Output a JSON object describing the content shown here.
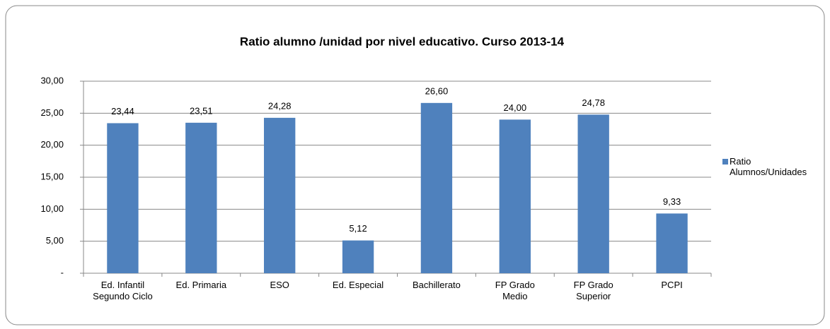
{
  "chart_data": {
    "type": "bar",
    "title": "Ratio alumno /unidad por nivel educativo. Curso 2013-14",
    "categories": [
      "Ed. Infantil\nSegundo Ciclo",
      "Ed. Primaria",
      "ESO",
      "Ed. Especial",
      "Bachillerato",
      "FP Grado\nMedio",
      "FP Grado\nSuperior",
      "PCPI"
    ],
    "series": [
      {
        "name": "Ratio\nAlumnos/Unidades",
        "color": "#4f81bd",
        "values": [
          23.44,
          23.51,
          24.28,
          5.12,
          26.6,
          24.0,
          24.78,
          9.33
        ],
        "value_labels": [
          "23,44",
          "23,51",
          "24,28",
          "5,12",
          "26,60",
          "24,00",
          "24,78",
          "9,33"
        ]
      }
    ],
    "ylim": [
      0,
      30
    ],
    "yticks": [
      {
        "value": 0,
        "label": "-"
      },
      {
        "value": 5,
        "label": "5,00"
      },
      {
        "value": 10,
        "label": "10,00"
      },
      {
        "value": 15,
        "label": "15,00"
      },
      {
        "value": 20,
        "label": "20,00"
      },
      {
        "value": 25,
        "label": "25,00"
      },
      {
        "value": 30,
        "label": "30,00"
      }
    ],
    "grid": true,
    "legend": "right"
  }
}
